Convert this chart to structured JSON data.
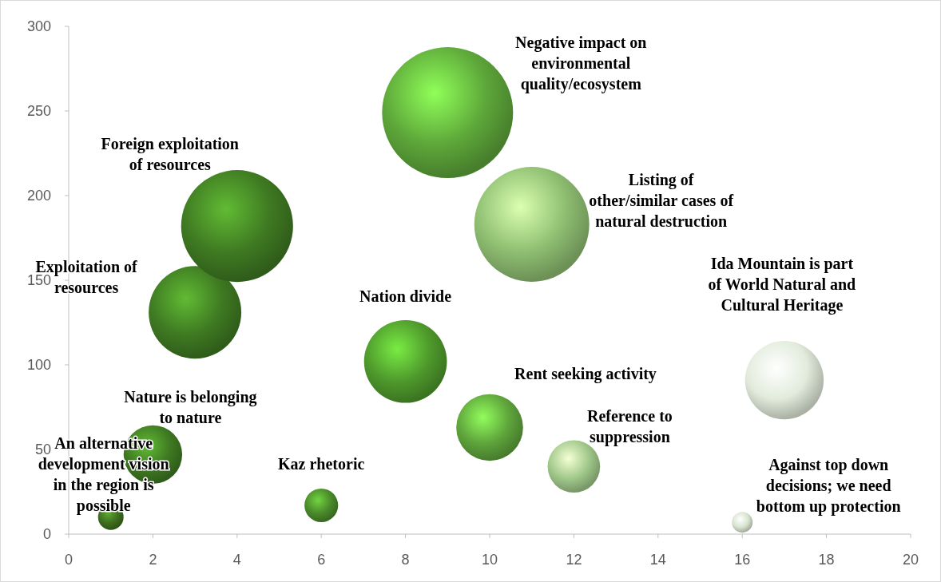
{
  "chart_data": {
    "type": "bubble",
    "x": [
      1,
      2,
      3,
      4,
      6,
      8,
      9,
      10,
      11,
      12,
      16,
      17
    ],
    "values": [
      10,
      47,
      131,
      182,
      17,
      102,
      249,
      63,
      183,
      40,
      7,
      91
    ],
    "sizes": [
      0.038,
      0.2,
      0.5,
      0.73,
      0.066,
      0.4,
      1,
      0.26,
      0.77,
      0.16,
      0.025,
      0.36
    ],
    "colors": [
      "#3d6e1f",
      "#3f7a22",
      "#3f7a22",
      "#3f7a22",
      "#4a8a2a",
      "#4f9a2c",
      "#5ea83a",
      "#5fa53c",
      "#8fbf72",
      "#a0c88a",
      "#d8e4d0",
      "#e2ebdc"
    ],
    "xlim": [
      0,
      20
    ],
    "xticks": [
      0,
      2,
      4,
      6,
      8,
      10,
      12,
      14,
      16,
      18,
      20
    ],
    "ylim": [
      0,
      300
    ],
    "yticks": [
      0,
      50,
      100,
      150,
      200,
      250,
      300
    ],
    "grid": false,
    "annotations": [
      "An alternative development vision in the region is possible",
      "Nature is belonging to nature",
      "Exploitation of resources",
      "Foreign exploitation of resources",
      "Kaz rhetoric",
      "Nation divide",
      "Negative impact on environmental quality/ecosystem",
      "Rent seeking activity",
      "Listing of other/similar cases of natural destruction",
      "Reference to suppression",
      "Against top down decisions; we need bottom up protection",
      "Ida Mountain is part of World Natural and Cultural Heritage"
    ]
  }
}
